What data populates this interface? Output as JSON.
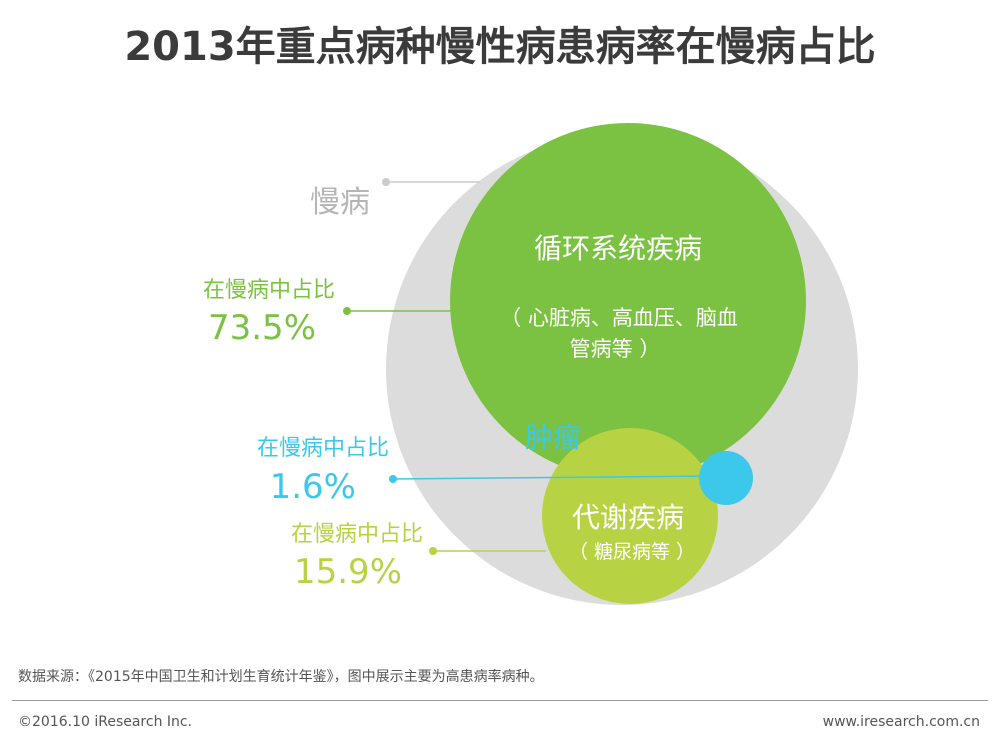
{
  "title": "2013年重点病种慢性病患病率在慢病占比",
  "chart_data": {
    "type": "nested-bubble",
    "title": "2013年重点病种慢性病患病率在慢病占比",
    "container": {
      "name": "慢病"
    },
    "series": [
      {
        "name": "循环系统疾病",
        "detail": "（ 心脏病、高血压、脑血",
        "detail2": "管病等 ）",
        "share_label": "在慢病中占比",
        "value": 73.5,
        "value_label": "73.5%",
        "color": "#7cc242"
      },
      {
        "name": "肿瘤",
        "share_label": "在慢病中占比",
        "value": 1.6,
        "value_label": "1.6%",
        "color": "#3bc8ea"
      },
      {
        "name": "代谢疾病",
        "detail": "（ 糖尿病等 ）",
        "share_label": "在慢病中占比",
        "value": 15.9,
        "value_label": "15.9%",
        "color": "#b7d343"
      }
    ],
    "colors": {
      "container": "#dcdcdc",
      "container_label": "#b5b5b5",
      "title": "#3b3b3b"
    }
  },
  "footer": {
    "source": "数据来源：《2015年中国卫生和计划生育统计年鉴》，图中展示主要为高患病率病种。",
    "copyright": "©2016.10 iResearch Inc.",
    "website": "www.iresearch.com.cn"
  }
}
